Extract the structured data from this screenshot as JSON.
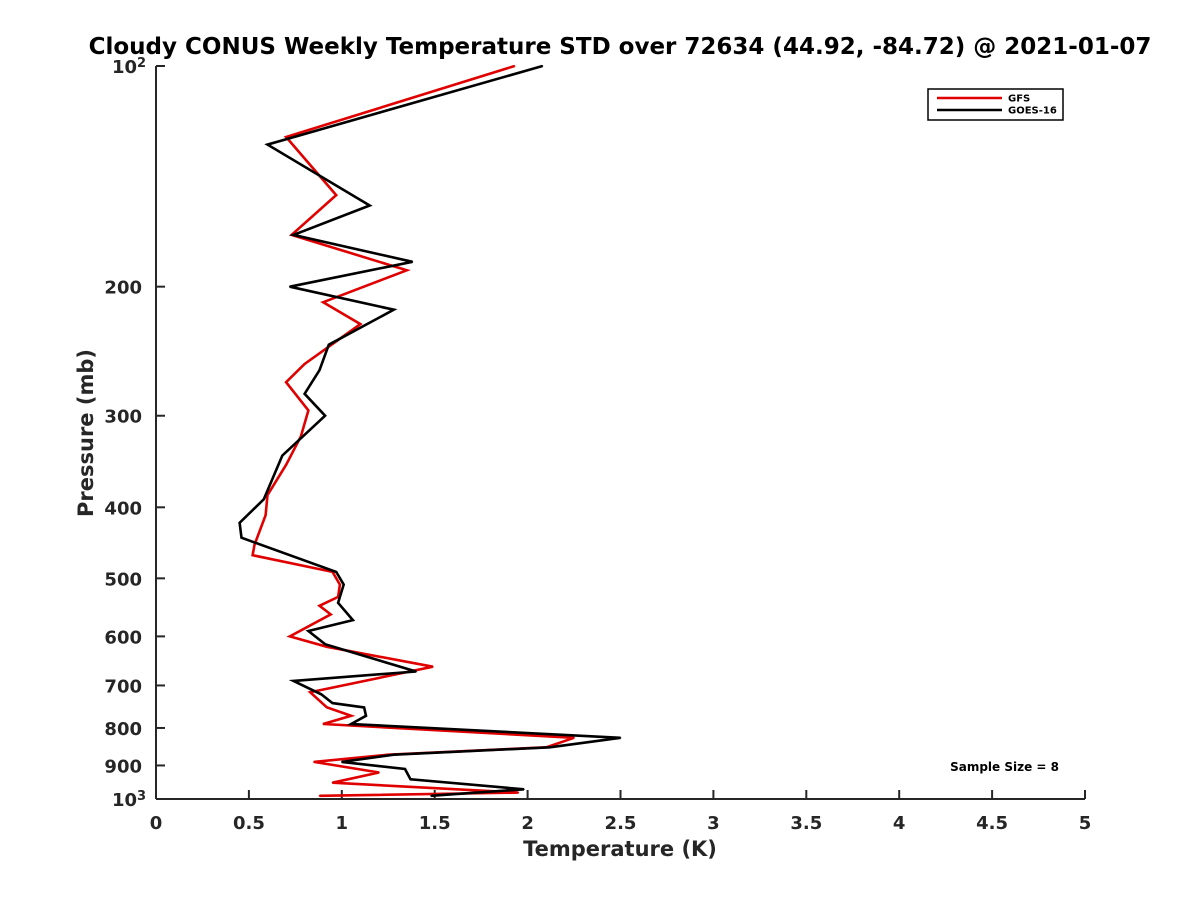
{
  "chart_data": {
    "type": "line",
    "title": "Cloudy CONUS Weekly Temperature STD over 72634 (44.92, -84.72) @ 2021-01-07",
    "xlabel": "Temperature (K)",
    "ylabel": "Pressure (mb)",
    "xlim": [
      0,
      5
    ],
    "ylim": [
      100,
      1000
    ],
    "y_scale": "log",
    "y_reversed": true,
    "grid": false,
    "legend_position": "top-right",
    "x_ticks": [
      {
        "value": 0,
        "label": "0"
      },
      {
        "value": 0.5,
        "label": "0.5"
      },
      {
        "value": 1,
        "label": "1"
      },
      {
        "value": 1.5,
        "label": "1.5"
      },
      {
        "value": 2,
        "label": "2"
      },
      {
        "value": 2.5,
        "label": "2.5"
      },
      {
        "value": 3,
        "label": "3"
      },
      {
        "value": 3.5,
        "label": "3.5"
      },
      {
        "value": 4,
        "label": "4"
      },
      {
        "value": 4.5,
        "label": "4.5"
      },
      {
        "value": 5,
        "label": "5"
      }
    ],
    "y_ticks": [
      {
        "value": 100,
        "label": "10",
        "sup": "2"
      },
      {
        "value": 200,
        "label": "200"
      },
      {
        "value": 300,
        "label": "300"
      },
      {
        "value": 400,
        "label": "400"
      },
      {
        "value": 500,
        "label": "500"
      },
      {
        "value": 600,
        "label": "600"
      },
      {
        "value": 700,
        "label": "700"
      },
      {
        "value": 800,
        "label": "800"
      },
      {
        "value": 900,
        "label": "900"
      },
      {
        "value": 1000,
        "label": "10",
        "sup": "3"
      }
    ],
    "series": [
      {
        "name": "GFS",
        "color": "#e00000",
        "x": [
          1.93,
          0.7,
          0.97,
          0.73,
          1.35,
          0.9,
          1.1,
          0.8,
          0.7,
          0.82,
          0.78,
          0.7,
          0.6,
          0.59,
          0.53,
          0.52,
          0.95,
          0.99,
          0.98,
          0.88,
          0.94,
          0.72,
          0.92,
          1.49,
          0.83,
          0.92,
          1.05,
          0.9,
          2.25,
          2.1,
          1.25,
          0.85,
          1.2,
          0.95,
          1.95,
          0.88
        ],
        "y": [
          100,
          125,
          150,
          170,
          190,
          210,
          225,
          255,
          270,
          295,
          320,
          350,
          385,
          410,
          450,
          465,
          490,
          510,
          530,
          545,
          560,
          600,
          620,
          660,
          715,
          750,
          770,
          790,
          825,
          850,
          870,
          890,
          920,
          950,
          980,
          990
        ]
      },
      {
        "name": "GOES-16",
        "color": "#000000",
        "x": [
          2.08,
          0.6,
          1.15,
          0.74,
          1.38,
          0.72,
          1.28,
          0.93,
          0.88,
          0.8,
          0.91,
          0.68,
          0.58,
          0.45,
          0.46,
          0.97,
          1.01,
          0.98,
          1.06,
          0.82,
          0.91,
          1.4,
          0.74,
          0.89,
          0.95,
          1.12,
          1.13,
          1.05,
          2.5,
          2.12,
          1.28,
          1.0,
          1.34,
          1.37,
          1.98,
          1.48
        ],
        "y": [
          100,
          128,
          155,
          170,
          185,
          200,
          215,
          240,
          260,
          280,
          300,
          340,
          390,
          420,
          440,
          490,
          510,
          540,
          570,
          590,
          615,
          670,
          690,
          720,
          740,
          750,
          770,
          790,
          825,
          850,
          870,
          890,
          910,
          940,
          970,
          990
        ]
      }
    ],
    "annotation": "Sample Size = 8"
  }
}
